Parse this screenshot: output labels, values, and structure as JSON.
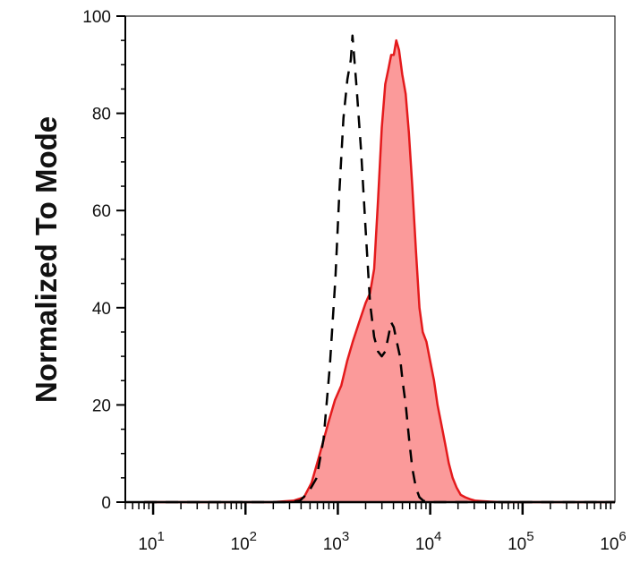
{
  "chart_data": {
    "type": "area",
    "title": "",
    "xlabel": "",
    "ylabel": "Normalized To Mode",
    "x_scale": "log",
    "xlim": [
      5,
      1000000
    ],
    "ylim": [
      0,
      100
    ],
    "x_ticks": [
      {
        "value": 10,
        "base": "10",
        "exp": "1"
      },
      {
        "value": 100,
        "base": "10",
        "exp": "2"
      },
      {
        "value": 1000,
        "base": "10",
        "exp": "3"
      },
      {
        "value": 10000,
        "base": "10",
        "exp": "4"
      },
      {
        "value": 100000,
        "base": "10",
        "exp": "5"
      },
      {
        "value": 1000000,
        "base": "10",
        "exp": "6"
      }
    ],
    "y_ticks": [
      "0",
      "20",
      "40",
      "60",
      "80",
      "100"
    ],
    "grid": false,
    "legend": "none",
    "series": [
      {
        "style": "filled",
        "fill_color": "#fb9a9a",
        "line_color": "#e41a1c",
        "x": [
          8,
          100,
          200,
          330,
          430,
          520,
          640,
          780,
          930,
          1090,
          1260,
          1450,
          1700,
          2000,
          2230,
          2470,
          2720,
          2990,
          3260,
          3520,
          3780,
          4030,
          4290,
          4600,
          4980,
          5420,
          5880,
          6400,
          6990,
          7650,
          8300,
          9100,
          10000,
          11000,
          12000,
          13200,
          14500,
          15900,
          17500,
          19300,
          21400,
          24000,
          27000,
          31000,
          36000,
          45000,
          60000,
          100000,
          1000000
        ],
        "y": [
          0,
          0,
          0,
          0.3,
          1,
          4,
          10,
          16,
          21,
          24,
          29,
          33,
          37,
          41,
          43,
          48,
          62,
          77,
          86,
          89,
          92,
          92,
          95,
          93,
          88,
          84,
          76,
          65,
          52,
          40,
          35,
          33,
          29,
          25,
          20,
          16,
          12,
          8,
          5,
          3,
          1.5,
          1,
          0.6,
          0.3,
          0.2,
          0.1,
          0,
          0,
          0
        ]
      },
      {
        "style": "dashed",
        "line_color": "#000000",
        "x": [
          8,
          100,
          300,
          390,
          480,
          590,
          700,
          820,
          940,
          1040,
          1150,
          1270,
          1380,
          1440,
          1600,
          1790,
          2000,
          2230,
          2470,
          2720,
          2990,
          3260,
          3520,
          3780,
          4030,
          4350,
          4700,
          5020,
          5440,
          5900,
          6400,
          6990,
          7650,
          8420,
          9300,
          10300,
          11500,
          13000,
          15000,
          20000,
          1000000
        ],
        "y": [
          0,
          0,
          0,
          0.3,
          2,
          5,
          13,
          28,
          46,
          64,
          79,
          87,
          91,
          96,
          85,
          72,
          56,
          41,
          34,
          31,
          30,
          31,
          34,
          37,
          36,
          33,
          30,
          25,
          20,
          13,
          7,
          3,
          1,
          0.3,
          0,
          0,
          0,
          0,
          0,
          0,
          0
        ]
      }
    ]
  }
}
